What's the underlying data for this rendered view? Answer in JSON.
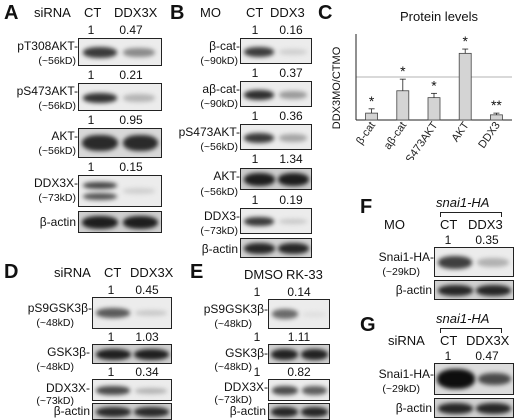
{
  "panels": {
    "A": {
      "label": "A",
      "treatment": "siRNA",
      "lanes": [
        "CT",
        "DDX3X"
      ],
      "rows": [
        {
          "name": "pT308AKT-",
          "kd": "(~56kD)",
          "value": "1",
          "ratio": "0.47"
        },
        {
          "name": "pS473AKT-",
          "kd": "(~56kD)",
          "value": "1",
          "ratio": "0.21"
        },
        {
          "name": "AKT-",
          "kd": "(~56kD)",
          "value": "1",
          "ratio": "0.95"
        },
        {
          "name": "DDX3X-",
          "kd": "(~73kD)",
          "value": "1",
          "ratio": "0.15"
        },
        {
          "name": "β-actin",
          "kd": ""
        }
      ]
    },
    "B": {
      "label": "B",
      "treatment": "MO",
      "lanes": [
        "CT",
        "DDX3"
      ],
      "rows": [
        {
          "name": "β-cat-",
          "kd": "(~90kD)",
          "value": "1",
          "ratio": "0.16"
        },
        {
          "name": "aβ-cat-",
          "kd": "(~90kD)",
          "value": "1",
          "ratio": "0.37"
        },
        {
          "name": "pS473AKT-",
          "kd": "(~56kD)",
          "value": "1",
          "ratio": "0.36"
        },
        {
          "name": "AKT-",
          "kd": "(~56kD)",
          "value": "1",
          "ratio": "1.34"
        },
        {
          "name": "DDX3-",
          "kd": "(~73kD)",
          "value": "1",
          "ratio": "0.19"
        },
        {
          "name": "β-actin",
          "kd": ""
        }
      ]
    },
    "C": {
      "label": "C",
      "title": "Protein levels",
      "ylabel": "DDX3MO/CTMO"
    },
    "D": {
      "label": "D",
      "treatment": "siRNA",
      "lanes": [
        "CT",
        "DDX3X"
      ],
      "rows": [
        {
          "name": "pS9GSK3β-",
          "kd": "(~48kD)",
          "value": "1",
          "ratio": "0.45"
        },
        {
          "name": "GSK3β-",
          "kd": "(~48kD)",
          "value": "1",
          "ratio": "1.03"
        },
        {
          "name": "DDX3X-",
          "kd": "(~73kD)",
          "value": "1",
          "ratio": "0.34"
        },
        {
          "name": "β-actin",
          "kd": ""
        }
      ]
    },
    "E": {
      "label": "E",
      "treatment": "",
      "lanes": [
        "DMSO",
        "RK-33"
      ],
      "rows": [
        {
          "name": "pS9GSK3β-",
          "kd": "(~48kD)",
          "value": "1",
          "ratio": "0.14"
        },
        {
          "name": "GSK3β-",
          "kd": "(~48kD)",
          "value": "1",
          "ratio": "1.11"
        },
        {
          "name": "DDX3X-",
          "kd": "(~73kD)",
          "value": "1",
          "ratio": "0.82"
        },
        {
          "name": "β-actin",
          "kd": ""
        }
      ]
    },
    "F": {
      "label": "F",
      "construct": "snai1-HA",
      "treatment": "MO",
      "lanes": [
        "CT",
        "DDX3"
      ],
      "rows": [
        {
          "name": "Snai1-HA-",
          "kd": "(~29kD)",
          "value": "1",
          "ratio": "0.35"
        },
        {
          "name": "β-actin",
          "kd": ""
        }
      ]
    },
    "G": {
      "label": "G",
      "construct": "snai1-HA",
      "treatment": "siRNA",
      "lanes": [
        "CT",
        "DDX3X"
      ],
      "rows": [
        {
          "name": "Snai1-HA-",
          "kd": "(~29kD)",
          "value": "1",
          "ratio": "0.47"
        },
        {
          "name": "β-actin",
          "kd": ""
        }
      ]
    }
  },
  "chart_data": {
    "type": "bar",
    "title": "Protein levels",
    "ylabel": "DDX3MO/CTMO",
    "xlabel": "",
    "categories": [
      "β-cat",
      "aβ-cat",
      "pS473AKT",
      "AKT",
      "DDX3"
    ],
    "values": [
      0.16,
      0.68,
      0.52,
      1.55,
      0.12
    ],
    "errors": [
      0.1,
      0.27,
      0.1,
      0.1,
      0.04
    ],
    "significance": [
      "*",
      "*",
      "*",
      "*",
      "**"
    ],
    "ylim": [
      0,
      2
    ],
    "reference_line": 1,
    "colors": {
      "bar": "#d4d4d4",
      "edge": "#444444"
    }
  }
}
